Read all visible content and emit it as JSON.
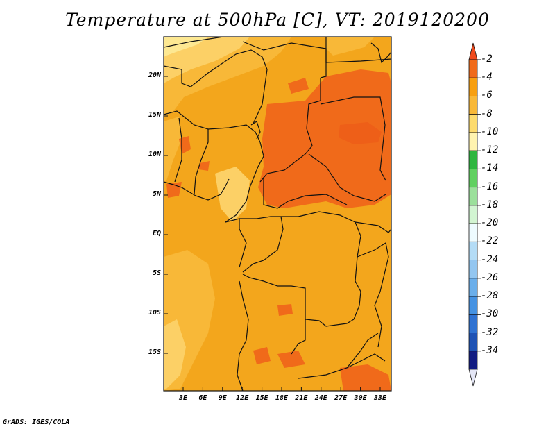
{
  "title": "Temperature at 500hPa [C], VT: 2019120200",
  "credit": "GrADS: IGES/COLA",
  "y_labels": [
    "20N",
    "15N",
    "10N",
    "5N",
    "EQ",
    "5S",
    "10S",
    "15S"
  ],
  "x_labels": [
    "3E",
    "6E",
    "9E",
    "12E",
    "15E",
    "18E",
    "21E",
    "24E",
    "27E",
    "30E",
    "33E"
  ],
  "colorbar": {
    "labels": [
      "-2",
      "-4",
      "-6",
      "-8",
      "-10",
      "-12",
      "-14",
      "-16",
      "-18",
      "-20",
      "-22",
      "-24",
      "-26",
      "-28",
      "-30",
      "-32",
      "-34"
    ],
    "colors": [
      "#f04a1c",
      "#f06a1a",
      "#f79f10",
      "#f8b838",
      "#fddb6e",
      "#fff3b0",
      "#2fb640",
      "#60d060",
      "#9be09b",
      "#d2f5d2",
      "#eefbff",
      "#b4dcf6",
      "#93c6f0",
      "#6aaeea",
      "#4592e2",
      "#2f72d2",
      "#1e52b4",
      "#121c82",
      "#e4e6f6"
    ]
  },
  "map_colors": {
    "base": "#f3a61c",
    "light": "#f8b838",
    "lighter": "#fcd066",
    "palest": "#fde892",
    "warm": "#f06a1a",
    "warmer": "#ee5f18",
    "border": "#111111"
  }
}
